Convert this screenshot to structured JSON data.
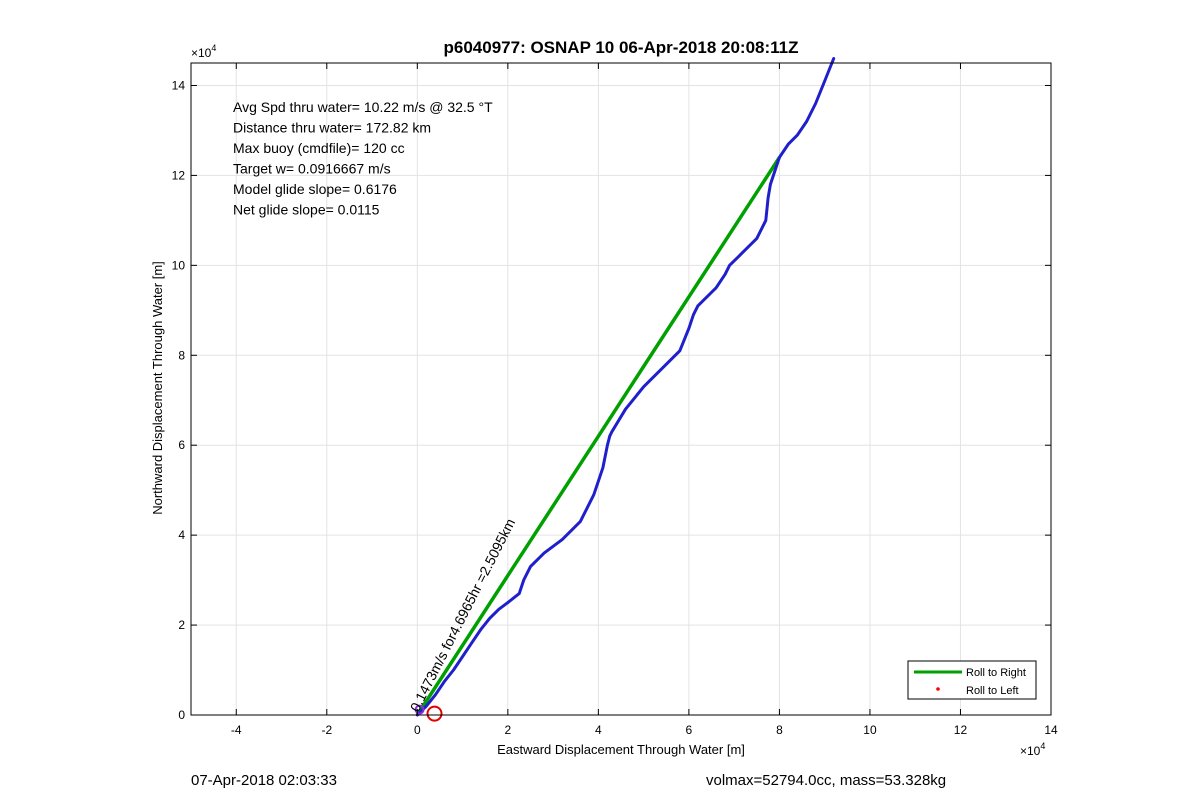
{
  "chart_data": {
    "type": "line",
    "title": "p6040977: OSNAP 10 06-Apr-2018 20:08:11Z",
    "xlabel": "Eastward Displacement Through Water [m]",
    "ylabel": "Northward Displacement Through Water [m]",
    "x_exponent_label": "×10",
    "y_exponent_label": "×10",
    "exponent": "4",
    "xlim": [
      -5,
      14
    ],
    "ylim": [
      0,
      14.5
    ],
    "xticks": [
      -4,
      -2,
      0,
      2,
      4,
      6,
      8,
      10,
      12,
      14
    ],
    "xtick_labels": [
      "-4",
      "-2",
      "0",
      "2",
      "4",
      "6",
      "8",
      "10",
      "12",
      "14"
    ],
    "yticks": [
      0,
      2,
      4,
      6,
      8,
      10,
      12,
      14
    ],
    "ytick_labels": [
      "0",
      "2",
      "4",
      "6",
      "8",
      "10",
      "12",
      "14"
    ],
    "grid": true,
    "legend_placement": "bottom-right",
    "series": [
      {
        "name": "Roll to Right",
        "color": "#00a000",
        "x": [
          0.0,
          1.0,
          2.0,
          3.0,
          4.0,
          5.0,
          6.0,
          7.0,
          8.0
        ],
        "y": [
          0.0,
          1.55,
          3.1,
          4.65,
          6.2,
          7.75,
          9.3,
          10.85,
          12.4
        ]
      },
      {
        "name": "Roll to Left",
        "color": "#ff0000",
        "x": [],
        "y": []
      },
      {
        "name": "",
        "color": "#1f1fcc",
        "x": [
          0.0,
          0.2,
          0.4,
          0.6,
          0.8,
          1.0,
          1.2,
          1.4,
          1.6,
          1.8,
          2.0,
          2.25,
          2.35,
          2.5,
          2.8,
          3.2,
          3.6,
          3.9,
          4.1,
          4.2,
          4.25,
          4.3,
          4.6,
          5.0,
          5.4,
          5.8,
          6.0,
          6.1,
          6.2,
          6.4,
          6.6,
          6.8,
          6.9,
          7.1,
          7.3,
          7.5,
          7.7,
          7.75,
          7.8,
          7.9,
          8.0,
          8.2,
          8.4,
          8.6,
          8.8,
          9.0,
          9.2
        ],
        "y": [
          0.0,
          0.2,
          0.45,
          0.75,
          1.0,
          1.3,
          1.6,
          1.9,
          2.15,
          2.35,
          2.5,
          2.7,
          3.0,
          3.3,
          3.6,
          3.9,
          4.3,
          4.9,
          5.5,
          6.0,
          6.2,
          6.3,
          6.8,
          7.3,
          7.7,
          8.1,
          8.6,
          8.9,
          9.1,
          9.3,
          9.5,
          9.8,
          10.0,
          10.2,
          10.4,
          10.6,
          11.0,
          11.5,
          11.8,
          12.1,
          12.4,
          12.7,
          12.9,
          13.2,
          13.6,
          14.1,
          14.6
        ]
      }
    ],
    "annotations": [
      "Avg Spd thru water= 10.22 m/s @  32.5 °T",
      "Distance thru water= 172.82 km",
      "Max buoy (cmdfile)= 120 cc",
      "Target w= 0.0916667 m/s",
      "Model glide slope= 0.6176",
      "Net glide slope= 0.0115"
    ],
    "rotated_annotation": "0.1473m/s for4.6965hr =2.5095km"
  },
  "footer": {
    "left": "07-Apr-2018 02:03:33",
    "right": "volmax=52794.0cc, mass=53.328kg"
  }
}
